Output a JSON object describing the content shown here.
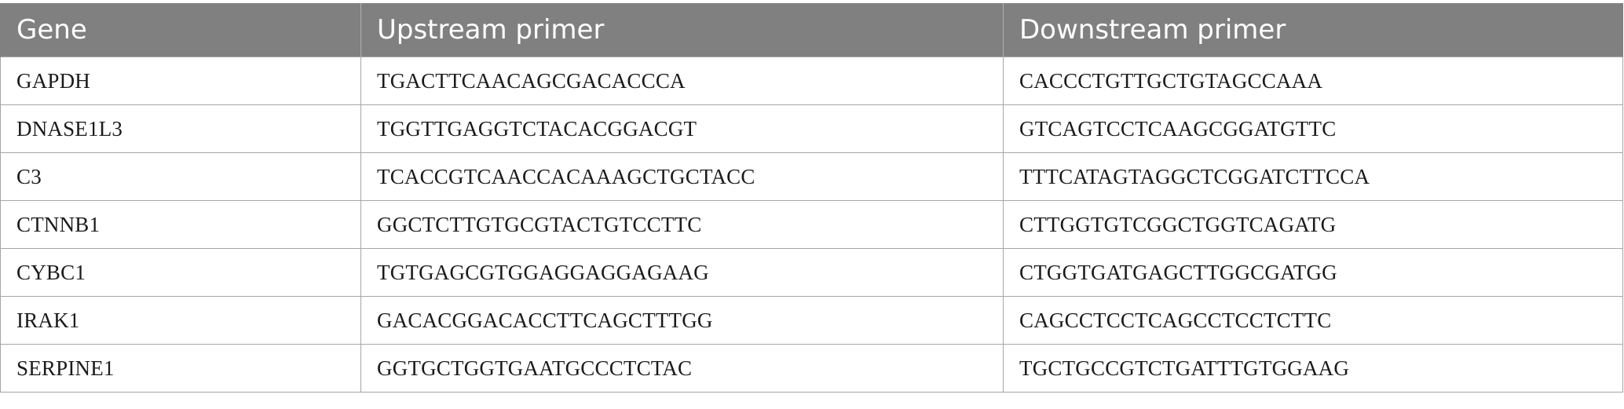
{
  "table": {
    "headers": [
      "Gene",
      "Upstream primer",
      "Downstream primer"
    ],
    "rows": [
      [
        "GAPDH",
        "TGACTTCAACAGCGACACCCA",
        "CACCCTGTTGCTGTAGCCAAA"
      ],
      [
        "DNASE1L3",
        "TGGTTGAGGTCTACACGGACGT",
        "GTCAGTCCTCAAGCGGATGTTC"
      ],
      [
        "C3",
        "TCACCGTCAACCACAAAGCTGCTACC",
        "TTTCATAGTAGGCTCGGATCTTCCA"
      ],
      [
        "CTNNB1",
        "GGCTCTTGTGCGTACTGTCCTTC",
        "CTTGGTGTCGGCTGGTCAGATG"
      ],
      [
        "CYBC1",
        "TGTGAGCGTGGAGGAGGAGAAG",
        "CTGGTGATGAGCTTGGCGATGG"
      ],
      [
        "IRAK1",
        "GACACGGACACCTTCAGCTTTGG",
        "CAGCCTCCTCAGCCTCCTCTTC"
      ],
      [
        "SERPINE1",
        "GGTGCTGGTGAATGCCCTCTAC",
        "TGCTGCCGTCTGATTTGTGGAAG"
      ]
    ]
  },
  "colors": {
    "header_bg": "#808080",
    "header_text": "#ffffff",
    "grid": "#a6a6a6"
  }
}
